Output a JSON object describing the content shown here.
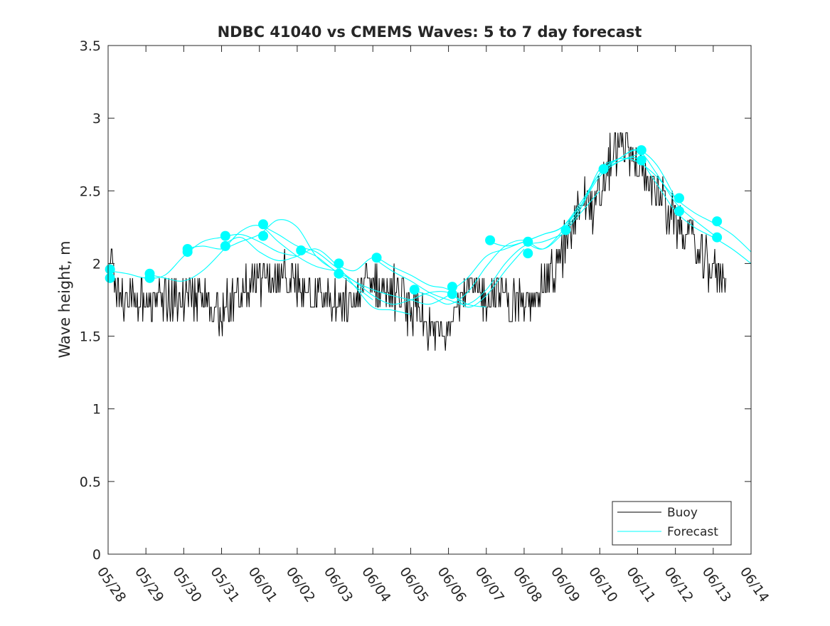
{
  "chart_data": {
    "type": "line",
    "title": "NDBC 41040 vs CMEMS Waves: 5 to 7 day forecast",
    "xlabel": "",
    "ylabel": "Wave height, m",
    "xlim": [
      0,
      17
    ],
    "ylim": [
      0,
      3.5
    ],
    "grid": false,
    "legend_position": "bottom-right",
    "x_tick_labels": [
      "05/28",
      "05/29",
      "05/30",
      "05/31",
      "06/01",
      "06/02",
      "06/03",
      "06/04",
      "06/05",
      "06/06",
      "06/07",
      "06/08",
      "06/09",
      "06/10",
      "06/11",
      "06/12",
      "06/13",
      "06/14"
    ],
    "y_ticks": [
      0,
      0.5,
      1,
      1.5,
      2,
      2.5,
      3,
      3.5
    ],
    "y_tick_labels": [
      "0",
      "0.5",
      "1",
      "1.5",
      "2",
      "2.5",
      "3",
      "3.5"
    ],
    "colors": {
      "buoy": "#000000",
      "forecast": "#00ffff"
    },
    "legend": [
      {
        "name": "Buoy",
        "color": "#000000"
      },
      {
        "name": "Forecast",
        "color": "#00ffff"
      }
    ],
    "buoy_anchors": {
      "x": [
        0,
        0.08,
        0.2,
        0.4,
        0.6,
        0.8,
        1.0,
        1.2,
        1.5,
        1.8,
        2.0,
        2.2,
        2.5,
        2.8,
        3.0,
        3.2,
        3.4,
        3.6,
        3.8,
        4.0,
        4.2,
        4.4,
        4.6,
        4.8,
        5.0,
        5.2,
        5.4,
        5.6,
        5.8,
        6.0,
        6.2,
        6.4,
        6.6,
        6.8,
        7.0,
        7.2,
        7.4,
        7.6,
        7.8,
        8.0,
        8.2,
        8.4,
        8.6,
        8.8,
        9.0,
        9.2,
        9.4,
        9.6,
        9.8,
        10.0,
        10.2,
        10.4,
        10.6,
        10.8,
        11.0,
        11.2,
        11.4,
        11.6,
        11.8,
        12.0,
        12.2,
        12.4,
        12.6,
        12.8,
        13.0,
        13.2,
        13.4,
        13.6,
        13.8,
        14.0,
        14.2,
        14.4,
        14.6,
        14.8,
        15.0,
        15.2,
        15.4,
        15.6,
        15.8,
        16.0,
        16.2,
        16.35
      ],
      "y": [
        1.85,
        2.05,
        1.85,
        1.72,
        1.8,
        1.75,
        1.72,
        1.75,
        1.72,
        1.75,
        1.78,
        1.75,
        1.75,
        1.7,
        1.68,
        1.72,
        1.75,
        1.8,
        1.85,
        1.9,
        1.88,
        1.85,
        1.9,
        1.85,
        1.8,
        1.85,
        1.82,
        1.78,
        1.75,
        1.7,
        1.68,
        1.72,
        1.75,
        1.9,
        1.85,
        1.82,
        1.8,
        1.78,
        1.75,
        1.68,
        1.65,
        1.55,
        1.52,
        1.55,
        1.6,
        1.72,
        1.8,
        1.82,
        1.8,
        1.78,
        1.82,
        1.78,
        1.72,
        1.75,
        1.7,
        1.75,
        1.85,
        1.9,
        1.95,
        2.05,
        2.2,
        2.35,
        2.5,
        2.35,
        2.45,
        2.65,
        2.75,
        2.85,
        2.75,
        2.65,
        2.6,
        2.55,
        2.45,
        2.35,
        2.3,
        2.25,
        2.2,
        2.1,
        2.0,
        1.95,
        1.9,
        1.85
      ]
    },
    "series": [
      {
        "name": "Forecast",
        "lines": [
          {
            "x": [
              0,
              0.5,
              1.0,
              1.5,
              2.0,
              2.5,
              3.0,
              3.5,
              4.0,
              4.5,
              5.0
            ],
            "y": [
              1.95,
              1.93,
              1.9,
              1.92,
              2.05,
              2.15,
              2.18,
              2.2,
              2.15,
              2.08,
              2.05
            ]
          },
          {
            "x": [
              1.0,
              1.5,
              2.0,
              2.5,
              3.0,
              3.5,
              4.0,
              4.5,
              5.0,
              5.5,
              6.0
            ],
            "y": [
              1.93,
              1.9,
              1.88,
              1.95,
              2.08,
              2.22,
              2.26,
              2.15,
              2.05,
              1.98,
              1.95
            ]
          },
          {
            "x": [
              2.0,
              2.5,
              3.0,
              3.5,
              4.0,
              4.5,
              5.0,
              5.5,
              6.0,
              6.5,
              7.0
            ],
            "y": [
              2.1,
              2.12,
              2.1,
              2.15,
              2.2,
              2.3,
              2.25,
              2.05,
              1.95,
              1.85,
              1.75
            ]
          },
          {
            "x": [
              3.0,
              3.5,
              4.0,
              4.5,
              5.0,
              5.5,
              6.0,
              6.5,
              7.0,
              7.5,
              8.0
            ],
            "y": [
              2.12,
              2.18,
              2.08,
              2.02,
              2.05,
              2.1,
              2.0,
              1.85,
              1.7,
              1.68,
              1.65
            ]
          },
          {
            "x": [
              4.0,
              4.5,
              5.0,
              5.5,
              6.0,
              6.5,
              7.0,
              7.5,
              8.0,
              8.5,
              9.0
            ],
            "y": [
              2.27,
              2.2,
              2.12,
              2.08,
              1.98,
              1.88,
              1.82,
              1.78,
              1.75,
              1.72,
              1.78
            ]
          },
          {
            "x": [
              5.0,
              5.5,
              6.0,
              6.5,
              7.0,
              7.5,
              8.0,
              8.5,
              9.0,
              9.5,
              10.0
            ],
            "y": [
              2.1,
              2.05,
              1.95,
              1.88,
              1.78,
              1.72,
              1.75,
              1.8,
              1.8,
              1.72,
              1.7
            ]
          },
          {
            "x": [
              6.0,
              6.5,
              7.0,
              7.5,
              8.0,
              8.5,
              9.0,
              9.5,
              10.0,
              10.5,
              11.0
            ],
            "y": [
              2.0,
              1.95,
              2.04,
              1.98,
              1.92,
              1.85,
              1.82,
              1.7,
              1.78,
              1.95,
              2.1
            ]
          },
          {
            "x": [
              7.0,
              7.5,
              8.0,
              8.5,
              9.0,
              9.5,
              10.0,
              10.5,
              11.0,
              11.5,
              12.0
            ],
            "y": [
              2.04,
              1.95,
              1.88,
              1.8,
              1.75,
              1.72,
              1.82,
              2.0,
              2.12,
              2.15,
              2.2
            ]
          },
          {
            "x": [
              8.0,
              8.5,
              9.0,
              9.5,
              10.0,
              10.5,
              11.0,
              11.5,
              12.0,
              12.5,
              13.0
            ],
            "y": [
              1.82,
              1.78,
              1.72,
              1.8,
              1.98,
              2.12,
              2.16,
              2.1,
              2.2,
              2.35,
              2.5
            ]
          },
          {
            "x": [
              9.0,
              9.5,
              10.0,
              10.5,
              11.0,
              11.5,
              12.0,
              12.5,
              13.0,
              13.5,
              14.0
            ],
            "y": [
              1.8,
              1.9,
              2.05,
              2.1,
              2.15,
              2.2,
              2.25,
              2.4,
              2.6,
              2.7,
              2.75
            ]
          },
          {
            "x": [
              10.0,
              10.5,
              11.0,
              11.5,
              12.0,
              12.5,
              13.0,
              13.5,
              14.0,
              14.5,
              15.0
            ],
            "y": [
              2.16,
              2.12,
              2.15,
              2.2,
              2.25,
              2.42,
              2.62,
              2.72,
              2.78,
              2.68,
              2.45
            ]
          },
          {
            "x": [
              11.0,
              11.5,
              12.0,
              12.5,
              13.0,
              13.5,
              14.0,
              14.5,
              15.0,
              15.5,
              16.0
            ],
            "y": [
              2.15,
              2.1,
              2.22,
              2.38,
              2.65,
              2.72,
              2.78,
              2.62,
              2.42,
              2.3,
              2.2
            ]
          },
          {
            "x": [
              12.0,
              12.5,
              13.0,
              13.5,
              14.0,
              14.5,
              15.0,
              15.5,
              16.0,
              16.5,
              17.0
            ],
            "y": [
              2.22,
              2.4,
              2.62,
              2.7,
              2.72,
              2.55,
              2.36,
              2.25,
              2.18,
              2.1,
              2.0
            ]
          },
          {
            "x": [
              13.0,
              13.5,
              14.0,
              14.5,
              15.0,
              15.5,
              16.0,
              16.5,
              17.0
            ],
            "y": [
              2.64,
              2.72,
              2.7,
              2.6,
              2.45,
              2.35,
              2.28,
              2.2,
              2.08
            ]
          }
        ],
        "markers": {
          "x": [
            0.05,
            0.05,
            1.1,
            1.1,
            2.1,
            2.1,
            3.1,
            3.1,
            4.1,
            4.1,
            5.1,
            6.1,
            6.1,
            7.1,
            8.1,
            9.1,
            9.1,
            10.1,
            11.1,
            11.1,
            12.1,
            13.1,
            14.1,
            14.1,
            15.1,
            15.1,
            16.1,
            16.1
          ],
          "y": [
            1.96,
            1.9,
            1.93,
            1.9,
            2.1,
            2.08,
            2.19,
            2.12,
            2.27,
            2.19,
            2.09,
            2.0,
            1.93,
            2.04,
            1.82,
            1.84,
            1.79,
            2.16,
            2.15,
            2.07,
            2.23,
            2.65,
            2.78,
            2.71,
            2.45,
            2.36,
            2.29,
            2.18
          ]
        }
      }
    ]
  }
}
